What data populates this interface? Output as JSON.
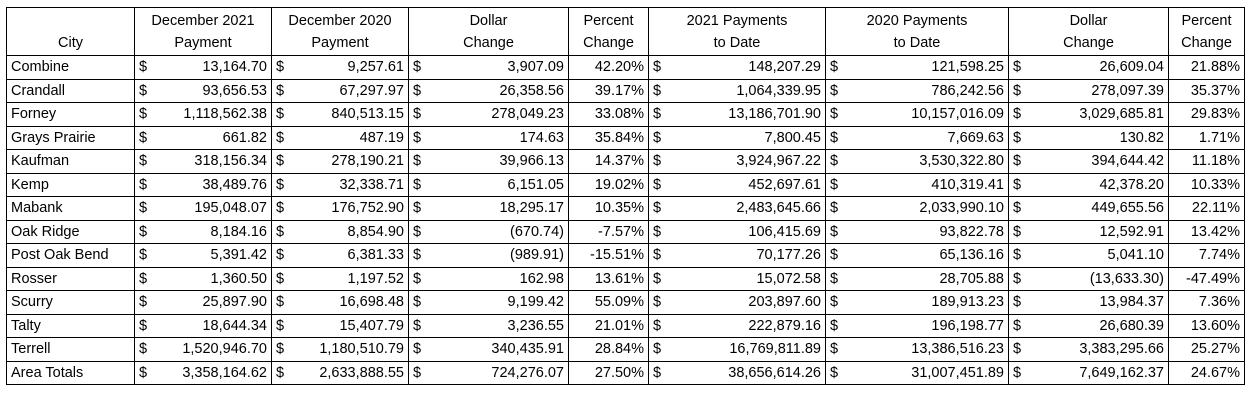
{
  "headers": {
    "city": [
      "",
      "City"
    ],
    "dec2021": [
      "December 2021",
      "Payment"
    ],
    "dec2020": [
      "December 2020",
      "Payment"
    ],
    "dollar_change_1": [
      "Dollar",
      "Change"
    ],
    "percent_change_1": [
      "Percent",
      "Change"
    ],
    "ytd2021": [
      "2021 Payments",
      "to Date"
    ],
    "ytd2020": [
      "2020 Payments",
      "to Date"
    ],
    "dollar_change_2": [
      "Dollar",
      "Change"
    ],
    "percent_change_2": [
      "Percent",
      "Change"
    ]
  },
  "currency_symbol": "$",
  "rows": [
    [
      "Combine",
      "13,164.70",
      "9,257.61",
      "3,907.09",
      "42.20%",
      "148,207.29",
      "121,598.25",
      "26,609.04",
      "21.88%"
    ],
    [
      "Crandall",
      "93,656.53",
      "67,297.97",
      "26,358.56",
      "39.17%",
      "1,064,339.95",
      "786,242.56",
      "278,097.39",
      "35.37%"
    ],
    [
      "Forney",
      "1,118,562.38",
      "840,513.15",
      "278,049.23",
      "33.08%",
      "13,186,701.90",
      "10,157,016.09",
      "3,029,685.81",
      "29.83%"
    ],
    [
      "Grays Prairie",
      "661.82",
      "487.19",
      "174.63",
      "35.84%",
      "7,800.45",
      "7,669.63",
      "130.82",
      "1.71%"
    ],
    [
      "Kaufman",
      "318,156.34",
      "278,190.21",
      "39,966.13",
      "14.37%",
      "3,924,967.22",
      "3,530,322.80",
      "394,644.42",
      "11.18%"
    ],
    [
      "Kemp",
      "38,489.76",
      "32,338.71",
      "6,151.05",
      "19.02%",
      "452,697.61",
      "410,319.41",
      "42,378.20",
      "10.33%"
    ],
    [
      "Mabank",
      "195,048.07",
      "176,752.90",
      "18,295.17",
      "10.35%",
      "2,483,645.66",
      "2,033,990.10",
      "449,655.56",
      "22.11%"
    ],
    [
      "Oak Ridge",
      "8,184.16",
      "8,854.90",
      "(670.74)",
      "-7.57%",
      "106,415.69",
      "93,822.78",
      "12,592.91",
      "13.42%"
    ],
    [
      "Post Oak Bend",
      "5,391.42",
      "6,381.33",
      "(989.91)",
      "-15.51%",
      "70,177.26",
      "65,136.16",
      "5,041.10",
      "7.74%"
    ],
    [
      "Rosser",
      "1,360.50",
      "1,197.52",
      "162.98",
      "13.61%",
      "15,072.58",
      "28,705.88",
      "(13,633.30)",
      "-47.49%"
    ],
    [
      "Scurry",
      "25,897.90",
      "16,698.48",
      "9,199.42",
      "55.09%",
      "203,897.60",
      "189,913.23",
      "13,984.37",
      "7.36%"
    ],
    [
      "Talty",
      "18,644.34",
      "15,407.79",
      "3,236.55",
      "21.01%",
      "222,879.16",
      "196,198.77",
      "26,680.39",
      "13.60%"
    ],
    [
      "Terrell",
      "1,520,946.70",
      "1,180,510.79",
      "340,435.91",
      "28.84%",
      "16,769,811.89",
      "13,386,516.23",
      "3,383,295.66",
      "25.27%"
    ],
    [
      "Area Totals",
      "3,358,164.62",
      "2,633,888.55",
      "724,276.07",
      "27.50%",
      "38,656,614.26",
      "31,007,451.89",
      "7,649,162.37",
      "24.67%"
    ]
  ]
}
